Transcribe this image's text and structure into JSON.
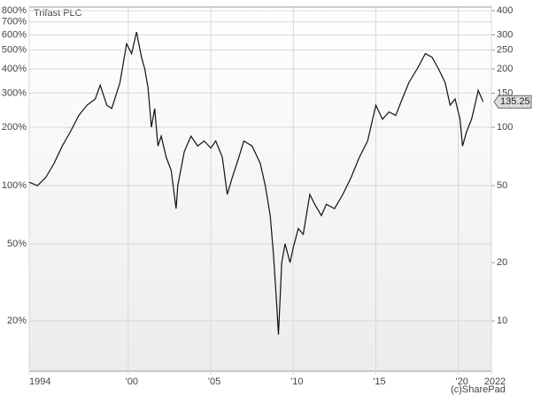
{
  "chart_data": {
    "type": "line",
    "title": "Trifast PLC",
    "source": "(c)SharePad",
    "log_scale": true,
    "grid": true,
    "x": [
      1994.0,
      1994.5,
      1995.0,
      1995.5,
      1996.0,
      1996.5,
      1997.0,
      1997.5,
      1998.0,
      1998.3,
      1998.7,
      1999.0,
      1999.5,
      1999.9,
      2000.2,
      2000.5,
      2000.8,
      2001.0,
      2001.2,
      2001.4,
      2001.6,
      2001.8,
      2002.0,
      2002.3,
      2002.6,
      2002.9,
      2003.0,
      2003.4,
      2003.8,
      2004.2,
      2004.6,
      2005.0,
      2005.3,
      2005.7,
      2006.0,
      2006.3,
      2006.7,
      2007.0,
      2007.5,
      2008.0,
      2008.3,
      2008.6,
      2008.8,
      2009.0,
      2009.1,
      2009.3,
      2009.5,
      2009.8,
      2010.0,
      2010.3,
      2010.6,
      2011.0,
      2011.3,
      2011.7,
      2012.0,
      2012.5,
      2013.0,
      2013.5,
      2014.0,
      2014.5,
      2015.0,
      2015.4,
      2015.8,
      2016.2,
      2016.6,
      2017.0,
      2017.5,
      2018.0,
      2018.4,
      2018.8,
      2019.2,
      2019.5,
      2019.8,
      2020.1,
      2020.25,
      2020.5,
      2020.8,
      2021.0,
      2021.2,
      2021.5
    ],
    "series": [
      {
        "name": "Trifast PLC",
        "color": "#111111",
        "axis": "y2",
        "values": [
          52,
          50,
          55,
          65,
          80,
          95,
          115,
          130,
          140,
          165,
          130,
          125,
          170,
          270,
          240,
          310,
          230,
          200,
          160,
          100,
          125,
          80,
          90,
          70,
          60,
          38,
          50,
          75,
          90,
          80,
          85,
          78,
          85,
          70,
          45,
          55,
          70,
          85,
          80,
          65,
          50,
          35,
          22,
          12,
          8.5,
          20,
          25,
          20,
          24,
          30,
          28,
          45,
          40,
          35,
          40,
          38,
          45,
          55,
          70,
          85,
          130,
          110,
          120,
          115,
          140,
          170,
          200,
          240,
          230,
          200,
          170,
          130,
          140,
          110,
          80,
          95,
          110,
          130,
          155,
          135.25
        ]
      }
    ],
    "xlim": [
      1994,
      2022
    ],
    "xticks": [
      {
        "value": 1994,
        "label": "1994"
      },
      {
        "value": 2000,
        "label": "'00"
      },
      {
        "value": 2005,
        "label": "'05"
      },
      {
        "value": 2010,
        "label": "'10"
      },
      {
        "value": 2015,
        "label": "'15"
      },
      {
        "value": 2020,
        "label": "'20"
      },
      {
        "value": 2022,
        "label": "2022"
      }
    ],
    "ylim": [
      11,
      835
    ],
    "yticks": [
      {
        "value": 800,
        "label": "800%"
      },
      {
        "value": 700,
        "label": "700%"
      },
      {
        "value": 600,
        "label": "600%"
      },
      {
        "value": 500,
        "label": "500%"
      },
      {
        "value": 400,
        "label": "400%"
      },
      {
        "value": 300,
        "label": "300%"
      },
      {
        "value": 200,
        "label": "200%"
      },
      {
        "value": 100,
        "label": "100%"
      },
      {
        "value": 50,
        "label": "50%"
      },
      {
        "value": 20,
        "label": "20%"
      }
    ],
    "y2lim": [
      5.5,
      417.5
    ],
    "y2ticks": [
      400,
      300,
      250,
      200,
      150,
      100,
      50,
      20,
      10
    ]
  }
}
